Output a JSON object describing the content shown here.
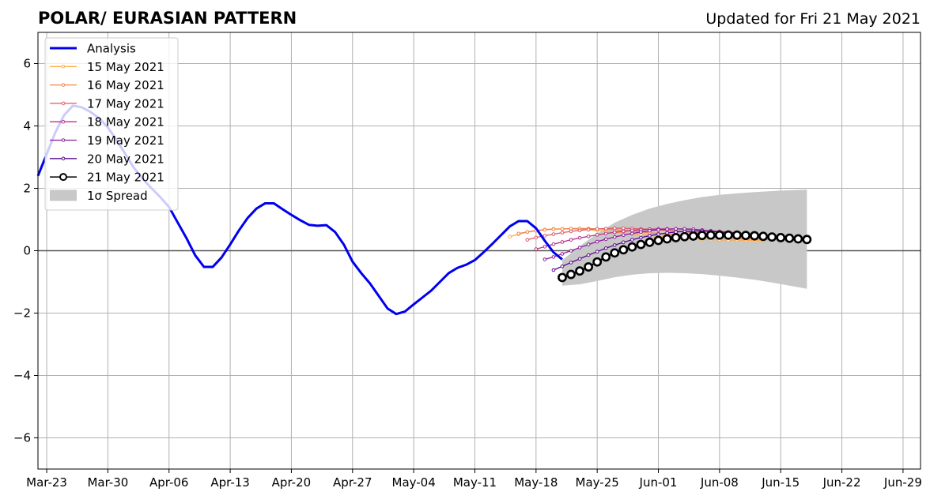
{
  "title": "POLAR/ EURASIAN  PATTERN",
  "updated": "Updated for Fri 21 May 2021",
  "chart_data": {
    "type": "line",
    "grid": true,
    "legend_position": "top-left",
    "ylim": [
      -7,
      7
    ],
    "yticks": [
      -6,
      -4,
      -2,
      0,
      2,
      4,
      6
    ],
    "ytick_labels": [
      "−6",
      "−4",
      "−2",
      "0",
      "2",
      "4",
      "6"
    ],
    "xlim": [
      "2021-03-22",
      "2021-07-01"
    ],
    "xticks": [
      "2021-03-23",
      "2021-03-30",
      "2021-04-06",
      "2021-04-13",
      "2021-04-20",
      "2021-04-27",
      "2021-05-04",
      "2021-05-11",
      "2021-05-18",
      "2021-05-25",
      "2021-06-01",
      "2021-06-08",
      "2021-06-15",
      "2021-06-22",
      "2021-06-29"
    ],
    "xtick_labels": [
      "Mar-23",
      "Mar-30",
      "Apr-06",
      "Apr-13",
      "Apr-20",
      "Apr-27",
      "May-04",
      "May-11",
      "May-18",
      "May-25",
      "Jun-01",
      "Jun-08",
      "Jun-15",
      "Jun-22",
      "Jun-29"
    ],
    "legend": [
      {
        "label": "Analysis",
        "color": "#0000ee",
        "kind": "thick"
      },
      {
        "label": "15 May 2021",
        "color": "#fcae47",
        "kind": "dots"
      },
      {
        "label": "16 May 2021",
        "color": "#f1844b",
        "kind": "dots"
      },
      {
        "label": "17 May 2021",
        "color": "#dd5a66",
        "kind": "dots"
      },
      {
        "label": "18 May 2021",
        "color": "#b83289",
        "kind": "dots"
      },
      {
        "label": "19 May 2021",
        "color": "#8b1d9c",
        "kind": "dots"
      },
      {
        "label": "20 May 2021",
        "color": "#5a0c8f",
        "kind": "dots"
      },
      {
        "label": "21 May 2021",
        "color": "#000000",
        "kind": "circles"
      },
      {
        "label": "1σ Spread",
        "color": "#c8c8c8",
        "kind": "patch"
      }
    ],
    "analysis": {
      "name": "Analysis",
      "color": "#0000ee",
      "x": [
        "2021-03-22",
        "2021-03-23",
        "2021-03-24",
        "2021-03-25",
        "2021-03-26",
        "2021-03-27",
        "2021-03-28",
        "2021-03-29",
        "2021-03-30",
        "2021-03-31",
        "2021-04-01",
        "2021-04-02",
        "2021-04-03",
        "2021-04-04",
        "2021-04-05",
        "2021-04-06",
        "2021-04-07",
        "2021-04-08",
        "2021-04-09",
        "2021-04-10",
        "2021-04-11",
        "2021-04-12",
        "2021-04-13",
        "2021-04-14",
        "2021-04-15",
        "2021-04-16",
        "2021-04-17",
        "2021-04-18",
        "2021-04-19",
        "2021-04-20",
        "2021-04-21",
        "2021-04-22",
        "2021-04-23",
        "2021-04-24",
        "2021-04-25",
        "2021-04-26",
        "2021-04-27",
        "2021-04-28",
        "2021-04-29",
        "2021-04-30",
        "2021-05-01",
        "2021-05-02",
        "2021-05-03",
        "2021-05-04",
        "2021-05-05",
        "2021-05-06",
        "2021-05-07",
        "2021-05-08",
        "2021-05-09",
        "2021-05-10",
        "2021-05-11",
        "2021-05-12",
        "2021-05-13",
        "2021-05-14",
        "2021-05-15",
        "2021-05-16",
        "2021-05-17",
        "2021-05-18",
        "2021-05-19",
        "2021-05-20",
        "2021-05-21"
      ],
      "y": [
        2.4,
        3.1,
        3.8,
        4.35,
        4.65,
        4.6,
        4.45,
        4.25,
        3.95,
        3.55,
        3.1,
        2.65,
        2.3,
        2.0,
        1.72,
        1.4,
        0.9,
        0.4,
        -0.15,
        -0.52,
        -0.52,
        -0.22,
        0.2,
        0.65,
        1.05,
        1.35,
        1.52,
        1.52,
        1.33,
        1.15,
        0.98,
        0.83,
        0.8,
        0.82,
        0.6,
        0.2,
        -0.35,
        -0.72,
        -1.05,
        -1.45,
        -1.85,
        -2.03,
        -1.95,
        -1.72,
        -1.5,
        -1.28,
        -1.0,
        -0.72,
        -0.55,
        -0.45,
        -0.3,
        -0.05,
        0.22,
        0.5,
        0.78,
        0.95,
        0.95,
        0.72,
        0.32,
        -0.05,
        -0.28
      ]
    },
    "forecasts": [
      {
        "name": "15 May 2021",
        "color": "#fcae47",
        "x": [
          "2021-05-15",
          "2021-05-16",
          "2021-05-17",
          "2021-05-18",
          "2021-05-19",
          "2021-05-20",
          "2021-05-21",
          "2021-05-22",
          "2021-05-23",
          "2021-05-24",
          "2021-05-25",
          "2021-05-26",
          "2021-05-27",
          "2021-05-28",
          "2021-05-29",
          "2021-05-30",
          "2021-05-31",
          "2021-06-01",
          "2021-06-02",
          "2021-06-03",
          "2021-06-04",
          "2021-06-05",
          "2021-06-06",
          "2021-06-07",
          "2021-06-08",
          "2021-06-09",
          "2021-06-10",
          "2021-06-11",
          "2021-06-12",
          "2021-06-13"
        ],
        "y": [
          0.45,
          0.53,
          0.6,
          0.65,
          0.68,
          0.7,
          0.7,
          0.7,
          0.69,
          0.67,
          0.65,
          0.63,
          0.6,
          0.57,
          0.54,
          0.51,
          0.49,
          0.46,
          0.44,
          0.42,
          0.4,
          0.38,
          0.37,
          0.36,
          0.35,
          0.34,
          0.34,
          0.33,
          0.33,
          0.32
        ]
      },
      {
        "name": "16 May 2021",
        "color": "#f1844b",
        "x": [
          "2021-05-16",
          "2021-05-17",
          "2021-05-18",
          "2021-05-19",
          "2021-05-20",
          "2021-05-21",
          "2021-05-22",
          "2021-05-23",
          "2021-05-24",
          "2021-05-25",
          "2021-05-26",
          "2021-05-27",
          "2021-05-28",
          "2021-05-29",
          "2021-05-30",
          "2021-05-31",
          "2021-06-01",
          "2021-06-02",
          "2021-06-03",
          "2021-06-04",
          "2021-06-05",
          "2021-06-06",
          "2021-06-07",
          "2021-06-08",
          "2021-06-09",
          "2021-06-10",
          "2021-06-11",
          "2021-06-12",
          "2021-06-13",
          "2021-06-14"
        ],
        "y": [
          0.55,
          0.6,
          0.64,
          0.67,
          0.69,
          0.7,
          0.71,
          0.71,
          0.71,
          0.7,
          0.69,
          0.67,
          0.65,
          0.63,
          0.6,
          0.58,
          0.55,
          0.53,
          0.51,
          0.49,
          0.47,
          0.45,
          0.43,
          0.42,
          0.4,
          0.39,
          0.38,
          0.37,
          0.36,
          0.35
        ]
      },
      {
        "name": "17 May 2021",
        "color": "#dd5a66",
        "x": [
          "2021-05-17",
          "2021-05-18",
          "2021-05-19",
          "2021-05-20",
          "2021-05-21",
          "2021-05-22",
          "2021-05-23",
          "2021-05-24",
          "2021-05-25",
          "2021-05-26",
          "2021-05-27",
          "2021-05-28",
          "2021-05-29",
          "2021-05-30",
          "2021-05-31",
          "2021-06-01",
          "2021-06-02",
          "2021-06-03",
          "2021-06-04",
          "2021-06-05",
          "2021-06-06",
          "2021-06-07",
          "2021-06-08",
          "2021-06-09",
          "2021-06-10",
          "2021-06-11",
          "2021-06-12",
          "2021-06-13",
          "2021-06-14",
          "2021-06-15"
        ],
        "y": [
          0.35,
          0.42,
          0.48,
          0.53,
          0.58,
          0.62,
          0.65,
          0.68,
          0.7,
          0.71,
          0.72,
          0.72,
          0.71,
          0.7,
          0.69,
          0.67,
          0.65,
          0.63,
          0.61,
          0.58,
          0.56,
          0.54,
          0.51,
          0.49,
          0.47,
          0.45,
          0.43,
          0.41,
          0.39,
          0.38
        ]
      },
      {
        "name": "18 May 2021",
        "color": "#b83289",
        "x": [
          "2021-05-18",
          "2021-05-19",
          "2021-05-20",
          "2021-05-21",
          "2021-05-22",
          "2021-05-23",
          "2021-05-24",
          "2021-05-25",
          "2021-05-26",
          "2021-05-27",
          "2021-05-28",
          "2021-05-29",
          "2021-05-30",
          "2021-05-31",
          "2021-06-01",
          "2021-06-02",
          "2021-06-03",
          "2021-06-04",
          "2021-06-05",
          "2021-06-06",
          "2021-06-07",
          "2021-06-08",
          "2021-06-09",
          "2021-06-10",
          "2021-06-11",
          "2021-06-12",
          "2021-06-13",
          "2021-06-14",
          "2021-06-15",
          "2021-06-16"
        ],
        "y": [
          0.05,
          0.13,
          0.21,
          0.28,
          0.35,
          0.41,
          0.46,
          0.51,
          0.55,
          0.59,
          0.62,
          0.65,
          0.67,
          0.69,
          0.7,
          0.7,
          0.7,
          0.69,
          0.68,
          0.66,
          0.64,
          0.62,
          0.6,
          0.57,
          0.55,
          0.52,
          0.5,
          0.47,
          0.45,
          0.43
        ]
      },
      {
        "name": "19 May 2021",
        "color": "#8b1d9c",
        "x": [
          "2021-05-19",
          "2021-05-20",
          "2021-05-21",
          "2021-05-22",
          "2021-05-23",
          "2021-05-24",
          "2021-05-25",
          "2021-05-26",
          "2021-05-27",
          "2021-05-28",
          "2021-05-29",
          "2021-05-30",
          "2021-05-31",
          "2021-06-01",
          "2021-06-02",
          "2021-06-03",
          "2021-06-04",
          "2021-06-05",
          "2021-06-06",
          "2021-06-07"
        ],
        "y": [
          -0.28,
          -0.2,
          -0.1,
          0.0,
          0.1,
          0.2,
          0.29,
          0.37,
          0.44,
          0.5,
          0.55,
          0.6,
          0.64,
          0.67,
          0.69,
          0.7,
          0.7,
          0.69,
          0.66,
          0.6
        ]
      },
      {
        "name": "20 May 2021",
        "color": "#5a0c8f",
        "x": [
          "2021-05-20",
          "2021-05-21",
          "2021-05-22",
          "2021-05-23",
          "2021-05-24",
          "2021-05-25",
          "2021-05-26",
          "2021-05-27",
          "2021-05-28",
          "2021-05-29",
          "2021-05-30",
          "2021-05-31",
          "2021-06-01",
          "2021-06-02",
          "2021-06-03",
          "2021-06-04",
          "2021-06-05",
          "2021-06-06",
          "2021-06-07",
          "2021-06-08",
          "2021-06-09",
          "2021-06-10",
          "2021-06-11",
          "2021-06-12",
          "2021-06-13",
          "2021-06-14",
          "2021-06-15",
          "2021-06-16",
          "2021-06-17"
        ],
        "y": [
          -0.62,
          -0.5,
          -0.38,
          -0.26,
          -0.14,
          -0.03,
          0.08,
          0.18,
          0.27,
          0.35,
          0.42,
          0.48,
          0.53,
          0.57,
          0.6,
          0.62,
          0.63,
          0.63,
          0.62,
          0.6,
          0.58,
          0.56,
          0.53,
          0.51,
          0.48,
          0.46,
          0.43,
          0.41,
          0.39
        ]
      }
    ],
    "current": {
      "name": "21 May 2021",
      "color": "#000000",
      "x": [
        "2021-05-21",
        "2021-05-22",
        "2021-05-23",
        "2021-05-24",
        "2021-05-25",
        "2021-05-26",
        "2021-05-27",
        "2021-05-28",
        "2021-05-29",
        "2021-05-30",
        "2021-05-31",
        "2021-06-01",
        "2021-06-02",
        "2021-06-03",
        "2021-06-04",
        "2021-06-05",
        "2021-06-06",
        "2021-06-07",
        "2021-06-08",
        "2021-06-09",
        "2021-06-10",
        "2021-06-11",
        "2021-06-12",
        "2021-06-13",
        "2021-06-14",
        "2021-06-15",
        "2021-06-16",
        "2021-06-17",
        "2021-06-18"
      ],
      "y": [
        -0.86,
        -0.76,
        -0.65,
        -0.52,
        -0.36,
        -0.2,
        -0.07,
        0.03,
        0.12,
        0.2,
        0.27,
        0.33,
        0.38,
        0.42,
        0.45,
        0.47,
        0.49,
        0.5,
        0.5,
        0.5,
        0.5,
        0.49,
        0.48,
        0.46,
        0.44,
        0.42,
        0.4,
        0.38,
        0.36
      ]
    },
    "spread": {
      "name": "1σ Spread",
      "color": "#c8c8c8",
      "x": [
        "2021-05-21",
        "2021-05-23",
        "2021-05-25",
        "2021-05-27",
        "2021-05-29",
        "2021-05-31",
        "2021-06-02",
        "2021-06-04",
        "2021-06-06",
        "2021-06-08",
        "2021-06-10",
        "2021-06-12",
        "2021-06-14",
        "2021-06-16",
        "2021-06-18"
      ],
      "upper": [
        -0.3,
        0.15,
        0.55,
        0.9,
        1.15,
        1.35,
        1.5,
        1.62,
        1.72,
        1.79,
        1.84,
        1.88,
        1.91,
        1.94,
        1.96
      ],
      "lower": [
        -1.12,
        -1.08,
        -0.97,
        -0.85,
        -0.77,
        -0.72,
        -0.71,
        -0.72,
        -0.75,
        -0.8,
        -0.86,
        -0.93,
        -1.02,
        -1.12,
        -1.22
      ]
    }
  }
}
